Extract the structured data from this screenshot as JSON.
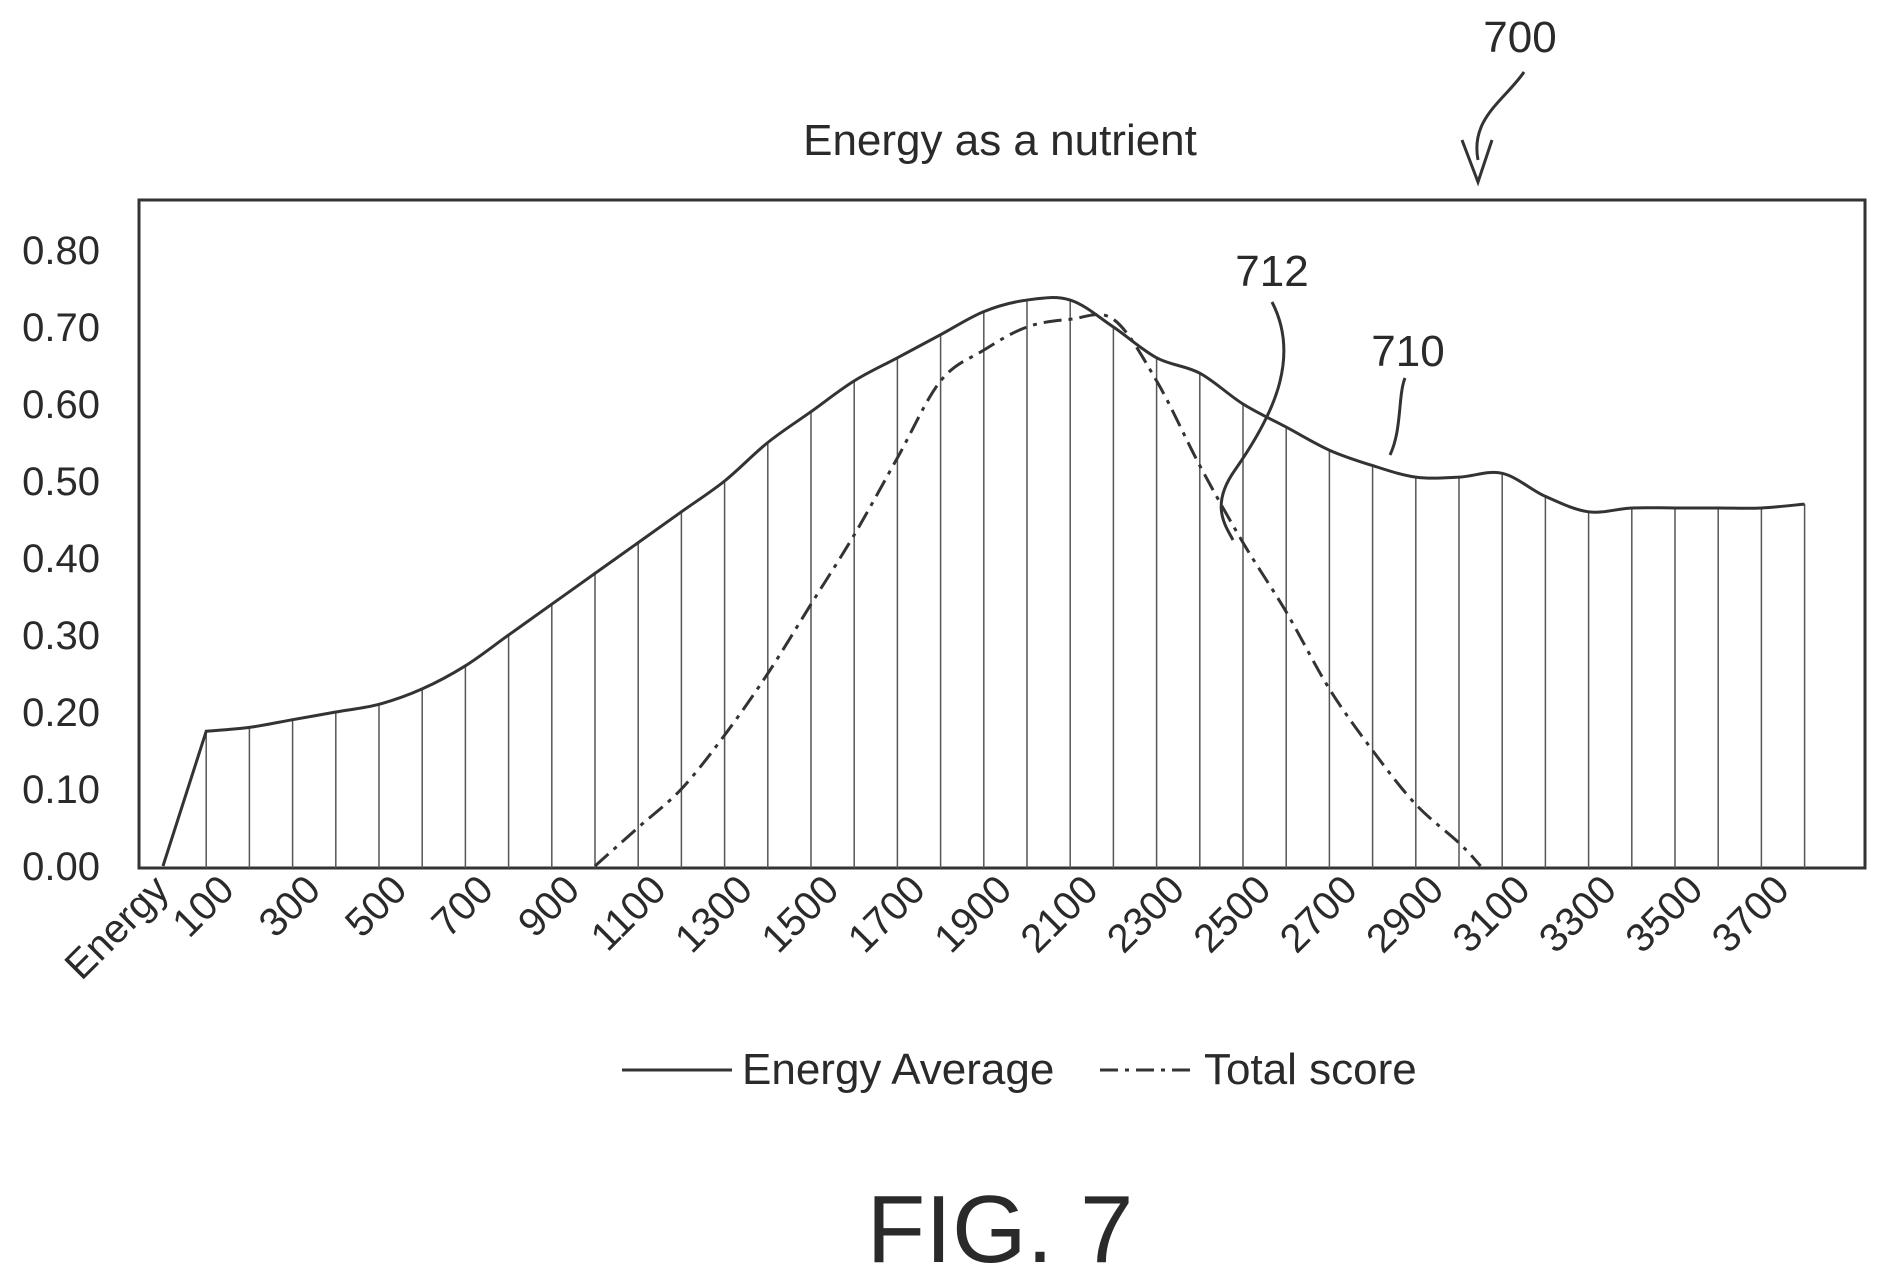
{
  "figure": {
    "ref_number": "700",
    "caption": "FIG. 7"
  },
  "chart_data": {
    "type": "line",
    "title": "Energy as a nutrient",
    "xlabel": "",
    "ylabel": "",
    "x_axis_first_label": "Energy",
    "x_tick_labels": [
      "100",
      "300",
      "500",
      "700",
      "900",
      "1100",
      "1300",
      "1500",
      "1700",
      "1900",
      "2100",
      "2300",
      "2500",
      "2700",
      "2900",
      "3100",
      "3300",
      "3500",
      "3700"
    ],
    "x": [
      0,
      100,
      200,
      300,
      400,
      500,
      600,
      700,
      800,
      900,
      1000,
      1100,
      1200,
      1300,
      1400,
      1500,
      1600,
      1700,
      1800,
      1900,
      2000,
      2100,
      2200,
      2300,
      2400,
      2500,
      2600,
      2700,
      2800,
      2900,
      3000,
      3100,
      3200,
      3300,
      3400,
      3500,
      3600,
      3700,
      3800
    ],
    "xlim": [
      -100,
      3850
    ],
    "ylim": [
      0,
      0.8
    ],
    "y_ticks": [
      "0.00",
      "0.10",
      "0.20",
      "0.30",
      "0.40",
      "0.50",
      "0.60",
      "0.70",
      "0.80"
    ],
    "vertical_gridlines": true,
    "legend_position": "bottom",
    "series": [
      {
        "name": "Energy Average",
        "style": "solid",
        "ref": "710",
        "x": [
          0,
          100,
          200,
          300,
          400,
          500,
          600,
          700,
          800,
          900,
          1000,
          1100,
          1200,
          1300,
          1400,
          1500,
          1600,
          1700,
          1800,
          1900,
          2000,
          2100,
          2200,
          2300,
          2400,
          2500,
          2600,
          2700,
          2800,
          2900,
          3000,
          3100,
          3200,
          3300,
          3400,
          3500,
          3600,
          3700,
          3800
        ],
        "values": [
          0.0,
          0.175,
          0.18,
          0.19,
          0.2,
          0.21,
          0.23,
          0.26,
          0.3,
          0.34,
          0.38,
          0.42,
          0.46,
          0.5,
          0.55,
          0.59,
          0.63,
          0.66,
          0.69,
          0.72,
          0.735,
          0.735,
          0.7,
          0.66,
          0.64,
          0.6,
          0.57,
          0.54,
          0.52,
          0.505,
          0.505,
          0.51,
          0.48,
          0.46,
          0.465,
          0.465,
          0.465,
          0.465,
          0.47
        ]
      },
      {
        "name": "Total score",
        "style": "dash-dot",
        "ref": "712",
        "x": [
          1000,
          1100,
          1200,
          1300,
          1400,
          1500,
          1600,
          1700,
          1800,
          1900,
          2000,
          2100,
          2200,
          2300,
          2400,
          2500,
          2600,
          2700,
          2800,
          2900,
          3000,
          3050
        ],
        "values": [
          0.0,
          0.05,
          0.1,
          0.17,
          0.25,
          0.34,
          0.43,
          0.53,
          0.63,
          0.67,
          0.7,
          0.71,
          0.71,
          0.63,
          0.52,
          0.42,
          0.33,
          0.23,
          0.15,
          0.08,
          0.03,
          0.0
        ]
      }
    ]
  }
}
